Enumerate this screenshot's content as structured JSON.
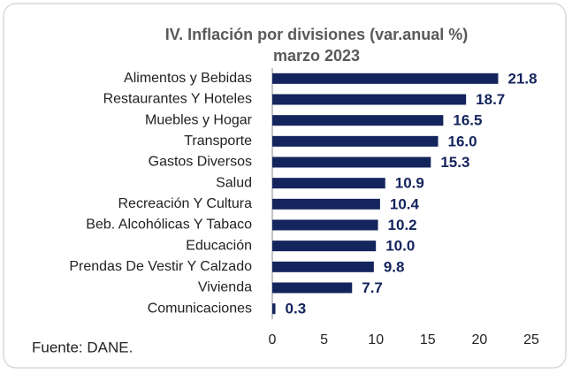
{
  "chart_data": {
    "type": "bar",
    "orientation": "horizontal",
    "title": "IV. Inflación por divisiones (var.anual %)",
    "subtitle": "marzo 2023",
    "source": "Fuente: DANE.",
    "categories": [
      "Alimentos y Bebidas",
      "Restaurantes Y Hoteles",
      "Muebles y Hogar",
      "Transporte",
      "Gastos Diversos",
      "Salud",
      "Recreación Y Cultura",
      "Beb. Alcohólicas Y Tabaco",
      "Educación",
      "Prendas De Vestir Y Calzado",
      "Vivienda",
      "Comunicaciones"
    ],
    "values": [
      21.8,
      18.7,
      16.5,
      16.0,
      15.3,
      10.9,
      10.4,
      10.2,
      10.0,
      9.8,
      7.7,
      0.3
    ],
    "value_labels": [
      "21.8",
      "18.7",
      "16.5",
      "16.0",
      "15.3",
      "10.9",
      "10.4",
      "10.2",
      "10.0",
      "9.8",
      "7.7",
      "0.3"
    ],
    "color": "#14245c",
    "xlim": [
      0,
      25
    ],
    "xticks": [
      0,
      5,
      10,
      15,
      20,
      25
    ]
  }
}
